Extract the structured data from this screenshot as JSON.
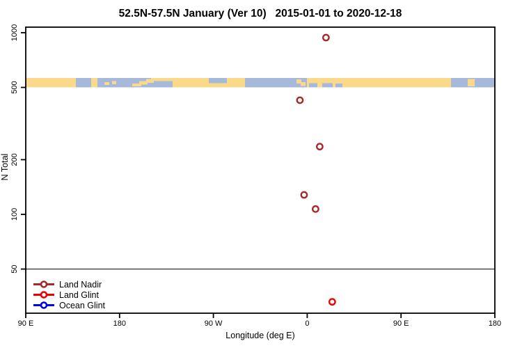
{
  "title": "52.5N-57.5N January (Ver 10)   2015-01-01 to 2020-12-18",
  "chart_data": {
    "type": "scatter",
    "title": "52.5N-57.5N January (Ver 10)   2015-01-01 to 2020-12-18",
    "xlabel": "Longitude (deg E)",
    "ylabel": "N Total",
    "y_scale": "log",
    "ylim": [
      29,
      1070
    ],
    "grid": false,
    "y_ticks": [
      "1000",
      "500",
      "200",
      "100",
      "50"
    ],
    "y_tick_values": [
      1000,
      500,
      200,
      100,
      50
    ],
    "x_range_unwrapped": [
      90,
      540
    ],
    "x_ticks": [
      {
        "label": "90 E",
        "lon": 90
      },
      {
        "label": "180",
        "lon": 180
      },
      {
        "label": "90 W",
        "lon": 270
      },
      {
        "label": "0",
        "lon": 360
      },
      {
        "label": "90 E",
        "lon": 450
      },
      {
        "label": "180",
        "lon": 540
      }
    ],
    "reference_line_n": 50,
    "reference_line_color": "#3f3f3f",
    "series": [
      {
        "name": "Land Nadir",
        "color": "#A52A2A",
        "points": [
          {
            "lon": 18,
            "n": 940
          },
          {
            "lon": -7,
            "n": 425
          },
          {
            "lon": 12,
            "n": 236
          },
          {
            "lon": -3,
            "n": 128
          },
          {
            "lon": 8,
            "n": 107
          }
        ]
      },
      {
        "name": "Land Glint",
        "color": "#EE0000",
        "points": [
          {
            "lon": 24,
            "n": 33
          }
        ]
      },
      {
        "name": "Ocean Glint",
        "color": "#0000EE",
        "points": []
      }
    ],
    "map_band": {
      "description": "World coastline strip for 52.5N-57.5N drawn near N=500",
      "n_center": 500,
      "ocean_color": "#A6B9DA",
      "land_color": "#FAD98B",
      "land_segments": [
        {
          "from": 90.0,
          "to": 138.1,
          "top": 0,
          "bottom": 1
        },
        {
          "from": 152.8,
          "to": 158.8,
          "top": 0,
          "bottom": 1
        },
        {
          "from": 165.4,
          "to": 170.1,
          "top": 0.45,
          "bottom": 0.75
        },
        {
          "from": 172.8,
          "to": 176.8,
          "top": 0.35,
          "bottom": 0.65
        },
        {
          "from": 192.2,
          "to": 200.8,
          "top": 0.6,
          "bottom": 0.9
        },
        {
          "from": 198.8,
          "to": 206.8,
          "top": 0.35,
          "bottom": 0.7
        },
        {
          "from": 205.5,
          "to": 212.8,
          "top": 0.1,
          "bottom": 0.5
        },
        {
          "from": 210.2,
          "to": 231.6,
          "top": 0,
          "bottom": 0.35
        },
        {
          "from": 230.9,
          "to": 300.3,
          "top": 0,
          "bottom": 1
        },
        {
          "from": 349.7,
          "to": 354.4,
          "top": 0.15,
          "bottom": 0.6
        },
        {
          "from": 353.7,
          "to": 358.4,
          "top": 0.45,
          "bottom": 0.85
        },
        {
          "from": 359.7,
          "to": 498.0,
          "top": 0,
          "bottom": 1
        },
        {
          "from": 514.0,
          "to": 520.7,
          "top": 0.1,
          "bottom": 0.9
        }
      ],
      "ocean_patches": [
        {
          "from": 265.6,
          "to": 283.0,
          "top": 0,
          "bottom": 0.55
        },
        {
          "from": 361.7,
          "to": 369.7,
          "top": 0.55,
          "bottom": 1
        },
        {
          "from": 374.4,
          "to": 384.4,
          "top": 0.55,
          "bottom": 1
        },
        {
          "from": 387.1,
          "to": 393.8,
          "top": 0.6,
          "bottom": 1
        }
      ]
    }
  },
  "legend": {
    "items": [
      {
        "label": "Land Nadir",
        "color": "#A52A2A"
      },
      {
        "label": "Land Glint",
        "color": "#EE0000"
      },
      {
        "label": "Ocean Glint",
        "color": "#0000EE"
      }
    ]
  }
}
